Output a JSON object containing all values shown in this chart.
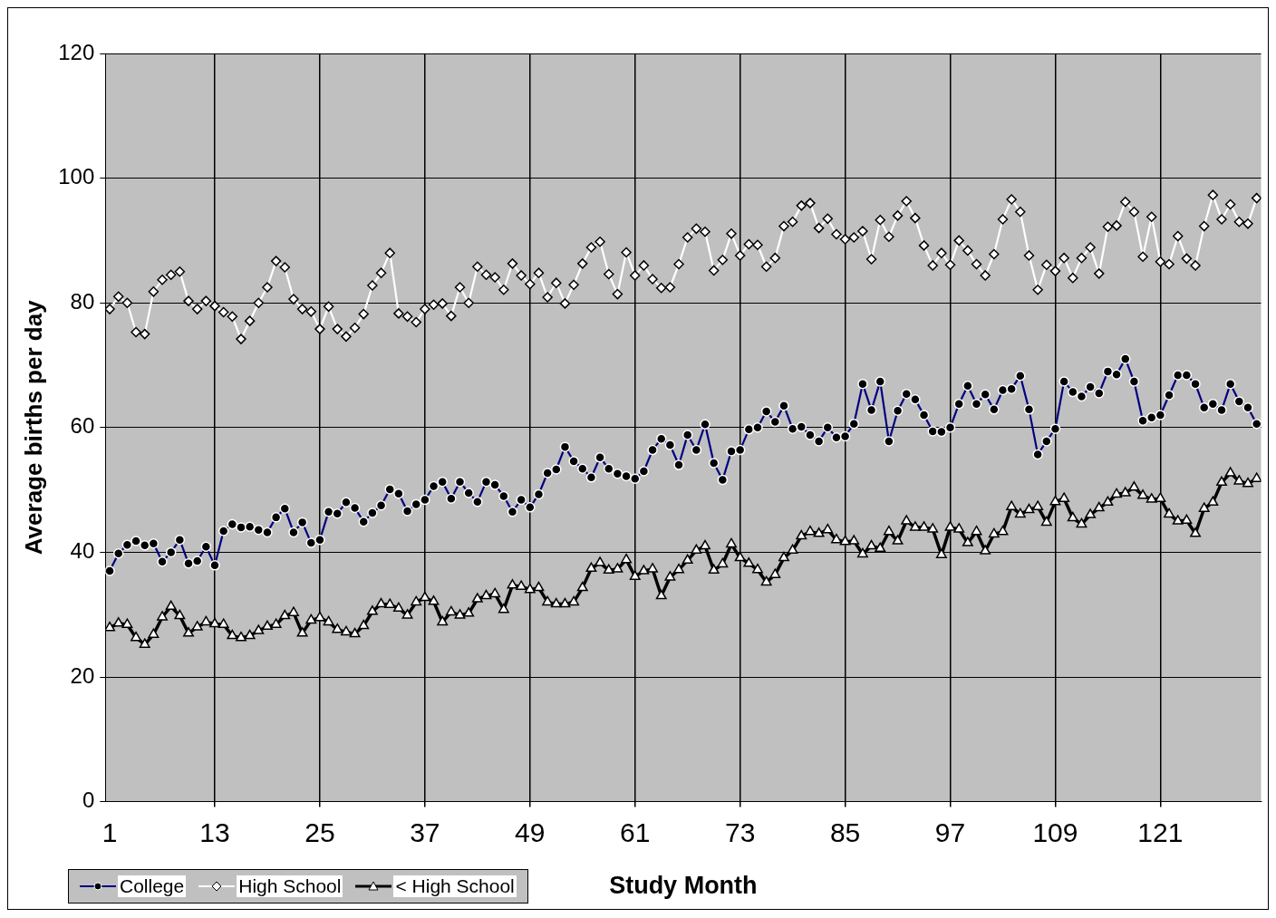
{
  "chart_data": {
    "type": "line",
    "xlabel": "Study Month",
    "ylabel": "Average births per day",
    "x": [
      1,
      2,
      3,
      4,
      5,
      6,
      7,
      8,
      9,
      10,
      11,
      12,
      13,
      14,
      15,
      16,
      17,
      18,
      19,
      20,
      21,
      22,
      23,
      24,
      25,
      26,
      27,
      28,
      29,
      30,
      31,
      32,
      33,
      34,
      35,
      36,
      37,
      38,
      39,
      40,
      41,
      42,
      43,
      44,
      45,
      46,
      47,
      48,
      49,
      50,
      51,
      52,
      53,
      54,
      55,
      56,
      57,
      58,
      59,
      60,
      61,
      62,
      63,
      64,
      65,
      66,
      67,
      68,
      69,
      70,
      71,
      72,
      73,
      74,
      75,
      76,
      77,
      78,
      79,
      80,
      81,
      82,
      83,
      84,
      85,
      86,
      87,
      88,
      89,
      90,
      91,
      92,
      93,
      94,
      95,
      96,
      97,
      98,
      99,
      100,
      101,
      102,
      103,
      104,
      105,
      106,
      107,
      108,
      109,
      110,
      111,
      112,
      113,
      114,
      115,
      116,
      117,
      118,
      119,
      120,
      121,
      122,
      123,
      124,
      125,
      126,
      127,
      128,
      129,
      130,
      131,
      132
    ],
    "series": [
      {
        "name": "College",
        "color": "#000080",
        "marker": "circle",
        "values": [
          37,
          39.8,
          41.2,
          41.8,
          41.1,
          41.4,
          38.5,
          40,
          42,
          38.2,
          38.6,
          40.9,
          37.9,
          43.4,
          44.5,
          44,
          44.1,
          43.6,
          43.2,
          45.6,
          47,
          43.2,
          44.8,
          41.5,
          42,
          46.5,
          46.2,
          48,
          47.1,
          44.9,
          46.3,
          47.5,
          50.1,
          49.4,
          46.6,
          47.7,
          48.4,
          50.6,
          51.3,
          48.6,
          51.3,
          49.5,
          48.1,
          51.3,
          50.8,
          49,
          46.5,
          48.4,
          47.2,
          49.3,
          52.7,
          53.3,
          56.9,
          54.6,
          53.4,
          52,
          55.2,
          53.4,
          52.6,
          52.2,
          51.8,
          53,
          56.4,
          58.2,
          57.2,
          54,
          58.8,
          56.4,
          60.5,
          54.3,
          51.6,
          56.2,
          56.4,
          59.7,
          60,
          62.6,
          60.9,
          63.5,
          59.8,
          60.1,
          58.8,
          57.8,
          60,
          58.4,
          58.6,
          60.6,
          67,
          62.8,
          67.4,
          57.8,
          62.7,
          65.4,
          64.5,
          62,
          59.4,
          59.3,
          60,
          63.8,
          66.7,
          63.8,
          65.3,
          62.9,
          66,
          66.2,
          68.3,
          62.9,
          55.7,
          57.8,
          59.8,
          67.4,
          65.7,
          65,
          66.5,
          65.5,
          69,
          68.5,
          71,
          67.4,
          61.1,
          61.6,
          62,
          65.2,
          68.4,
          68.4,
          67,
          63.2,
          63.8,
          62.8,
          67,
          64.2,
          63.2,
          60.6
        ]
      },
      {
        "name": "High School",
        "color": "#ffffff",
        "marker": "diamond",
        "values": [
          79,
          81,
          80,
          75.3,
          75,
          81.8,
          83.7,
          84.5,
          85,
          80.3,
          79,
          80.3,
          79.5,
          78.5,
          77.8,
          74.2,
          77.1,
          80,
          82.5,
          86.7,
          85.7,
          80.6,
          79,
          78.6,
          75.8,
          79.4,
          75.8,
          74.6,
          76,
          78.2,
          82.8,
          84.8,
          88,
          78.3,
          77.8,
          76.9,
          79,
          79.7,
          79.9,
          77.9,
          82.5,
          80,
          85.8,
          84.5,
          84.1,
          82.1,
          86.3,
          84.4,
          83,
          84.8,
          80.9,
          83.2,
          79.9,
          82.9,
          86.3,
          88.9,
          89.8,
          84.6,
          81.4,
          88.1,
          84.4,
          86,
          83.8,
          82.4,
          82.5,
          86.2,
          90.5,
          91.9,
          91.4,
          85.2,
          86.9,
          91.1,
          87.6,
          89.4,
          89.3,
          85.8,
          87.2,
          92.3,
          93,
          95.6,
          96,
          92,
          93.5,
          91,
          90.2,
          90.5,
          91.5,
          87,
          93.3,
          90.6,
          94,
          96.3,
          93.6,
          89.2,
          86,
          88,
          86.1,
          90,
          88.4,
          86.2,
          84.4,
          87.8,
          93.4,
          96.6,
          94.6,
          87.6,
          82.1,
          86.1,
          85.1,
          87.2,
          84,
          87.2,
          88.9,
          84.7,
          92.2,
          92.4,
          96.2,
          94.6,
          87.4,
          93.8,
          86.6,
          86.2,
          90.7,
          87.1,
          86,
          92.3,
          97.3,
          93.4,
          95.8,
          93,
          92.7,
          96.8
        ]
      },
      {
        "name": "< High School",
        "color": "#000000",
        "marker": "triangle",
        "values": [
          27.9,
          28.6,
          28.4,
          26.3,
          25.2,
          26.8,
          29.6,
          31.3,
          29.8,
          27,
          28,
          28.8,
          28.5,
          28.4,
          26.6,
          26.3,
          26.6,
          27.4,
          28.1,
          28.4,
          29.8,
          30.3,
          27,
          29.1,
          29.5,
          28.8,
          27.6,
          27.2,
          26.9,
          28.2,
          30.5,
          31.7,
          31.6,
          31,
          29.9,
          32,
          32.7,
          32.1,
          28.8,
          30.4,
          29.9,
          30.2,
          32.5,
          33,
          33.3,
          30.8,
          34.7,
          34.5,
          34,
          34.3,
          32,
          31.7,
          31.7,
          32,
          34.3,
          37.4,
          38.3,
          37.1,
          37.3,
          38.8,
          36.1,
          37,
          37.3,
          33,
          36,
          37.2,
          38.7,
          40.3,
          41,
          37.1,
          38.1,
          41.3,
          39.1,
          38.2,
          37.2,
          35.2,
          36.4,
          39.1,
          40.3,
          42.6,
          43.3,
          43,
          43.6,
          42,
          41.7,
          41.8,
          39.7,
          41,
          40.6,
          43.3,
          41.8,
          45,
          44,
          44,
          43.7,
          39.6,
          44,
          43.7,
          41.5,
          43.3,
          40.2,
          42.9,
          43.3,
          47.3,
          46.1,
          46.8,
          47.3,
          44.8,
          48.1,
          48.6,
          45.5,
          44.5,
          46,
          47.1,
          48,
          49.3,
          49.5,
          50.4,
          49.1,
          48.5,
          48.6,
          46.1,
          45,
          45.1,
          43,
          47,
          48,
          51.2,
          52.7,
          51.4,
          51,
          51.8
        ]
      }
    ],
    "xlim": [
      0.5,
      132.5
    ],
    "xticks": [
      1,
      13,
      25,
      37,
      49,
      61,
      73,
      85,
      97,
      109,
      121
    ],
    "ylim": [
      0,
      120
    ],
    "yticks": [
      0,
      20,
      40,
      60,
      80,
      100,
      120
    ],
    "grid": true,
    "legend": "bottom left",
    "line_style": "solid"
  }
}
